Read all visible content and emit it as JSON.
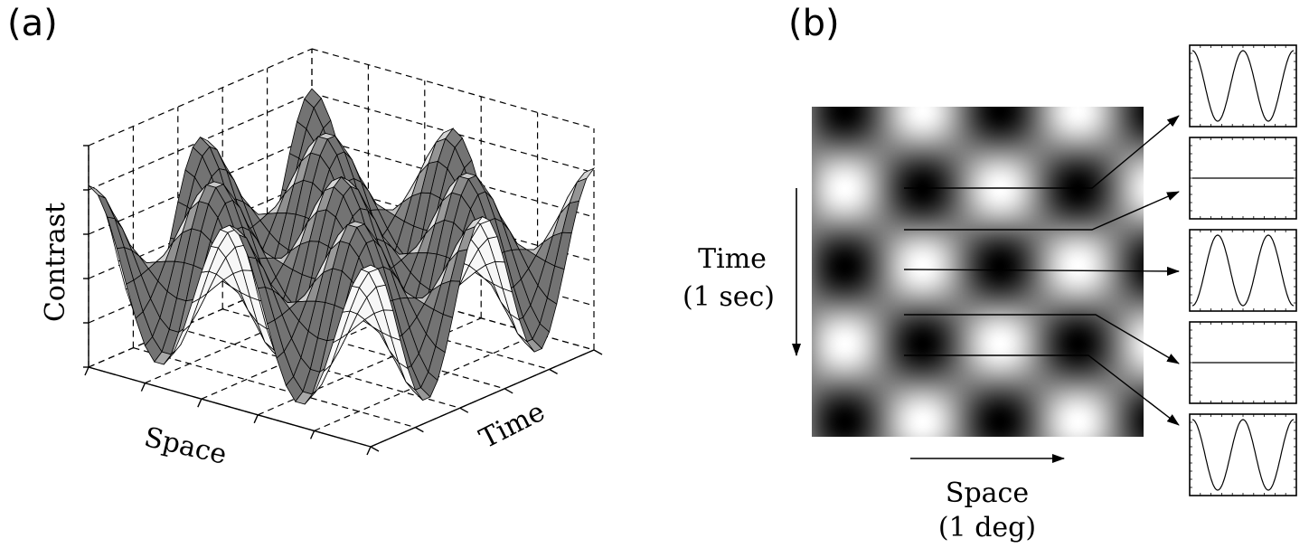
{
  "panels": {
    "a": {
      "label": "(a)",
      "axes": {
        "z": "Contrast",
        "x": "Space",
        "y": "Time"
      }
    },
    "b": {
      "label": "(b)",
      "time_axis": {
        "line1": "Time",
        "line2": "(1 sec)"
      },
      "space_axis": {
        "line1": "Space",
        "line2": "(1 deg)"
      }
    }
  }
}
